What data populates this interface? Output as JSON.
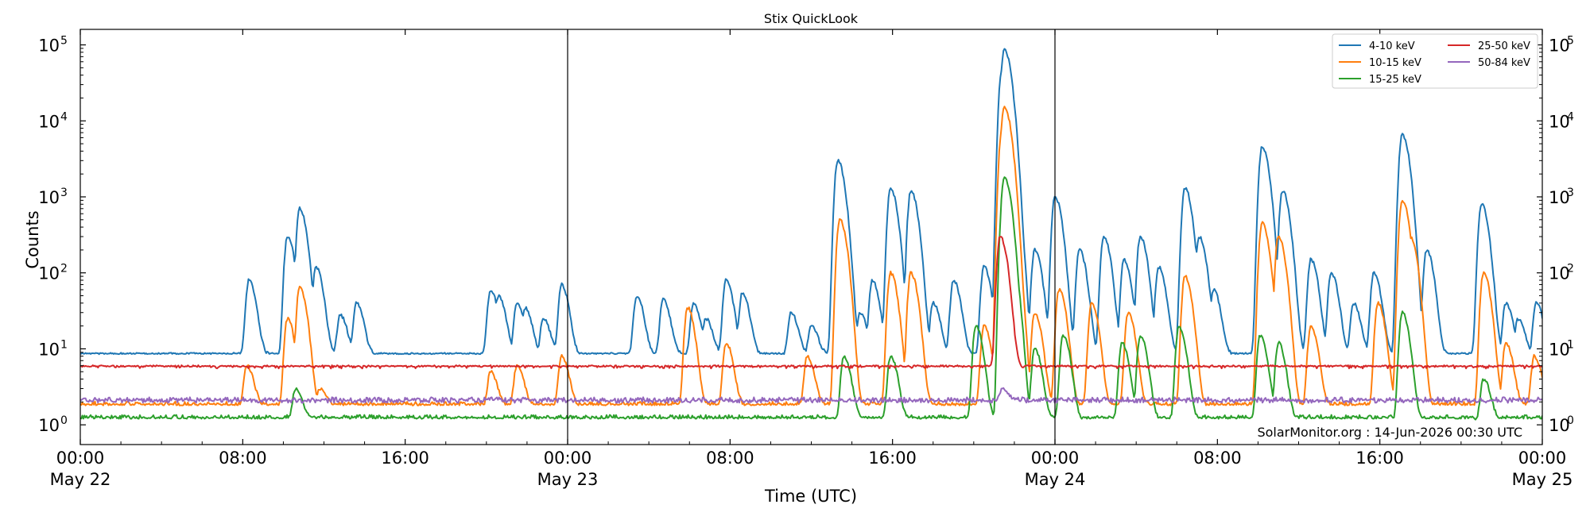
{
  "chart_data": {
    "type": "line",
    "title": "Stix QuickLook",
    "xlabel": "Time (UTC)",
    "ylabel": "Counts",
    "yscale": "log",
    "ylim": [
      0.55,
      160000
    ],
    "xlim_hours": [
      0,
      72
    ],
    "y_ticks": [
      {
        "value": 1,
        "base": "10",
        "exp": "0"
      },
      {
        "value": 10,
        "base": "10",
        "exp": "1"
      },
      {
        "value": 100,
        "base": "10",
        "exp": "2"
      },
      {
        "value": 1000,
        "base": "10",
        "exp": "3"
      },
      {
        "value": 10000,
        "base": "10",
        "exp": "4"
      },
      {
        "value": 100000,
        "base": "10",
        "exp": "5"
      }
    ],
    "x_ticks": [
      {
        "hour": 0,
        "time": "00:00",
        "date": "May 22"
      },
      {
        "hour": 8,
        "time": "08:00",
        "date": ""
      },
      {
        "hour": 16,
        "time": "16:00",
        "date": ""
      },
      {
        "hour": 24,
        "time": "00:00",
        "date": "May 23"
      },
      {
        "hour": 32,
        "time": "08:00",
        "date": ""
      },
      {
        "hour": 40,
        "time": "16:00",
        "date": ""
      },
      {
        "hour": 48,
        "time": "00:00",
        "date": "May 24"
      },
      {
        "hour": 56,
        "time": "08:00",
        "date": ""
      },
      {
        "hour": 64,
        "time": "16:00",
        "date": ""
      },
      {
        "hour": 72,
        "time": "00:00",
        "date": "May 25"
      }
    ],
    "day_boundaries_hours": [
      24,
      48
    ],
    "legend_position": "top-right",
    "credit": "SolarMonitor.org : 14-Jun-2026 00:30 UTC",
    "series": [
      {
        "name": "4-10 keV",
        "color": "#1f77b4",
        "baseline": 8.5,
        "points": [
          [
            8.3,
            80
          ],
          [
            10.2,
            300
          ],
          [
            10.8,
            700
          ],
          [
            11.6,
            120
          ],
          [
            12.8,
            28
          ],
          [
            13.6,
            40
          ],
          [
            20.2,
            60
          ],
          [
            20.6,
            50
          ],
          [
            21.5,
            40
          ],
          [
            21.9,
            35
          ],
          [
            22.8,
            25
          ],
          [
            23.7,
            70
          ],
          [
            27.4,
            50
          ],
          [
            28.7,
            45
          ],
          [
            30.2,
            40
          ],
          [
            30.8,
            25
          ],
          [
            31.8,
            80
          ],
          [
            32.6,
            55
          ],
          [
            35.0,
            30
          ],
          [
            36.0,
            20
          ],
          [
            37.3,
            3000
          ],
          [
            38.4,
            30
          ],
          [
            39.0,
            80
          ],
          [
            39.9,
            1300
          ],
          [
            40.9,
            1200
          ],
          [
            42.0,
            40
          ],
          [
            43.0,
            80
          ],
          [
            44.5,
            120
          ],
          [
            45.4,
            50000
          ],
          [
            45.5,
            85000
          ],
          [
            45.8,
            4000
          ],
          [
            47.0,
            200
          ],
          [
            48.0,
            1000
          ],
          [
            49.2,
            200
          ],
          [
            50.4,
            300
          ],
          [
            51.4,
            150
          ],
          [
            52.2,
            300
          ],
          [
            53.1,
            120
          ],
          [
            54.4,
            1300
          ],
          [
            55.1,
            300
          ],
          [
            55.8,
            60
          ],
          [
            58.2,
            4500
          ],
          [
            59.2,
            1200
          ],
          [
            60.6,
            150
          ],
          [
            61.6,
            100
          ],
          [
            62.7,
            40
          ],
          [
            63.7,
            100
          ],
          [
            65.1,
            6500
          ],
          [
            66.3,
            200
          ],
          [
            69.0,
            800
          ],
          [
            70.2,
            40
          ],
          [
            70.8,
            25
          ],
          [
            71.7,
            40
          ]
        ]
      },
      {
        "name": "10-15 keV",
        "color": "#ff7f0e",
        "baseline": 1.8,
        "points": [
          [
            8.2,
            6
          ],
          [
            10.2,
            25
          ],
          [
            10.8,
            65
          ],
          [
            11.8,
            3
          ],
          [
            20.2,
            5
          ],
          [
            21.5,
            6
          ],
          [
            23.7,
            8
          ],
          [
            29.9,
            35
          ],
          [
            31.8,
            12
          ],
          [
            35.8,
            8
          ],
          [
            37.4,
            500
          ],
          [
            39.9,
            100
          ],
          [
            40.9,
            100
          ],
          [
            44.5,
            20
          ],
          [
            45.4,
            8000
          ],
          [
            45.5,
            15000
          ],
          [
            45.8,
            800
          ],
          [
            47.0,
            30
          ],
          [
            48.2,
            60
          ],
          [
            49.8,
            40
          ],
          [
            51.6,
            30
          ],
          [
            54.4,
            90
          ],
          [
            58.2,
            450
          ],
          [
            59.0,
            300
          ],
          [
            60.6,
            20
          ],
          [
            63.9,
            40
          ],
          [
            65.1,
            900
          ],
          [
            65.5,
            300
          ],
          [
            69.1,
            100
          ],
          [
            70.2,
            12
          ],
          [
            71.6,
            8
          ]
        ]
      },
      {
        "name": "15-25 keV",
        "color": "#2ca02c",
        "baseline": 1.2,
        "points": [
          [
            10.6,
            3
          ],
          [
            37.6,
            8
          ],
          [
            39.9,
            8
          ],
          [
            44.1,
            20
          ],
          [
            45.5,
            1800
          ],
          [
            45.8,
            200
          ],
          [
            47.0,
            10
          ],
          [
            48.4,
            15
          ],
          [
            51.3,
            12
          ],
          [
            52.2,
            15
          ],
          [
            54.1,
            20
          ],
          [
            58.1,
            15
          ],
          [
            59.0,
            12
          ],
          [
            65.1,
            30
          ],
          [
            69.1,
            4
          ]
        ]
      },
      {
        "name": "25-50 keV",
        "color": "#d62728",
        "baseline": 5.8,
        "points": [
          [
            45.3,
            300
          ],
          [
            45.6,
            8
          ]
        ]
      },
      {
        "name": "50-84 keV",
        "color": "#9467bd",
        "baseline": 2.05,
        "points": [
          [
            45.4,
            3
          ]
        ]
      }
    ]
  }
}
